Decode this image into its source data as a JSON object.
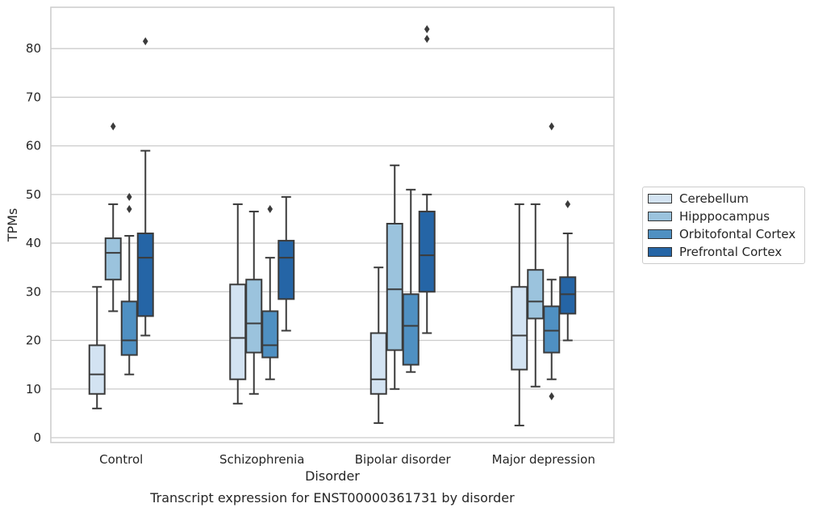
{
  "chart_data": {
    "type": "boxplot",
    "title": "",
    "caption": "Transcript expression for ENST00000361731 by disorder",
    "xlabel": "Disorder",
    "ylabel": "TPMs",
    "ylim": [
      -1,
      88.5
    ],
    "yticks": [
      0,
      10,
      20,
      30,
      40,
      50,
      60,
      70,
      80
    ],
    "grid": "horizontal",
    "legend_position": "right",
    "categories": [
      "Control",
      "Schizophrenia",
      "Bipolar disorder",
      "Major depression"
    ],
    "series": [
      {
        "name": "Cerebellum",
        "color": "#d3e3f2",
        "boxes": [
          {
            "whislo": 6,
            "q1": 9,
            "med": 13,
            "q3": 19,
            "whishi": 31,
            "fliers": []
          },
          {
            "whislo": 7,
            "q1": 12,
            "med": 20.5,
            "q3": 31.5,
            "whishi": 48,
            "fliers": []
          },
          {
            "whislo": 3,
            "q1": 9,
            "med": 12,
            "q3": 21.5,
            "whishi": 35,
            "fliers": []
          },
          {
            "whislo": 2.5,
            "q1": 14,
            "med": 21,
            "q3": 31,
            "whishi": 48,
            "fliers": []
          }
        ]
      },
      {
        "name": "Hipppocampus",
        "color": "#9bc3dd",
        "boxes": [
          {
            "whislo": 26,
            "q1": 32.5,
            "med": 38,
            "q3": 41,
            "whishi": 48,
            "fliers": [
              64
            ]
          },
          {
            "whislo": 9,
            "q1": 17.5,
            "med": 23.5,
            "q3": 32.5,
            "whishi": 46.5,
            "fliers": []
          },
          {
            "whislo": 10,
            "q1": 18,
            "med": 30.5,
            "q3": 44,
            "whishi": 56,
            "fliers": []
          },
          {
            "whislo": 10.5,
            "q1": 24.5,
            "med": 28,
            "q3": 34.5,
            "whishi": 48,
            "fliers": []
          }
        ]
      },
      {
        "name": "Orbitofontal Cortex",
        "color": "#4f90c2",
        "boxes": [
          {
            "whislo": 13,
            "q1": 17,
            "med": 20,
            "q3": 28,
            "whishi": 41.5,
            "fliers": [
              47,
              49.5
            ]
          },
          {
            "whislo": 12,
            "q1": 16.5,
            "med": 19,
            "q3": 26,
            "whishi": 37,
            "fliers": [
              47
            ]
          },
          {
            "whislo": 13.5,
            "q1": 15,
            "med": 23,
            "q3": 29.5,
            "whishi": 51,
            "fliers": []
          },
          {
            "whislo": 12,
            "q1": 17.5,
            "med": 22,
            "q3": 27,
            "whishi": 32.5,
            "fliers": [
              8.5,
              64
            ]
          }
        ]
      },
      {
        "name": "Prefrontal Cortex",
        "color": "#2565a6",
        "boxes": [
          {
            "whislo": 21,
            "q1": 25,
            "med": 37,
            "q3": 42,
            "whishi": 59,
            "fliers": [
              81.5
            ]
          },
          {
            "whislo": 22,
            "q1": 28.5,
            "med": 37,
            "q3": 40.5,
            "whishi": 49.5,
            "fliers": []
          },
          {
            "whislo": 21.5,
            "q1": 30,
            "med": 37.5,
            "q3": 46.5,
            "whishi": 50,
            "fliers": [
              82,
              84
            ]
          },
          {
            "whislo": 20,
            "q1": 25.5,
            "med": 29.5,
            "q3": 33,
            "whishi": 42,
            "fliers": [
              48
            ]
          }
        ]
      }
    ]
  }
}
